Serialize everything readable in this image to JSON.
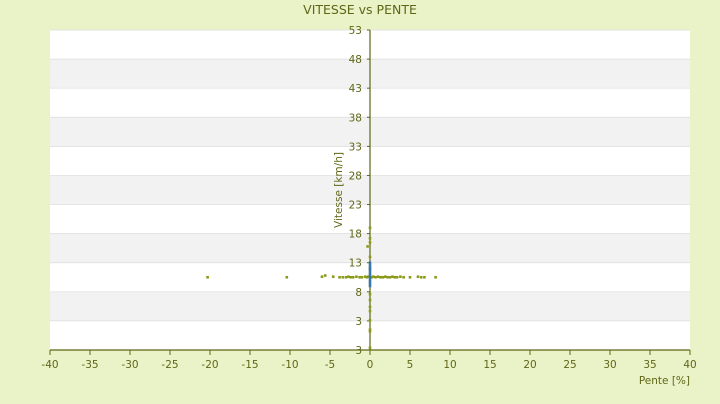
{
  "chart_data": {
    "type": "scatter",
    "title": "VITESSE vs PENTE",
    "xlabel": "Pente [%]",
    "ylabel": "Vitesse [km/h]",
    "xlim": [
      -40,
      40
    ],
    "ylim": [
      -2,
      53
    ],
    "x_ticks": [
      "-40",
      "-35",
      "-30",
      "-25",
      "-20",
      "-15",
      "-10",
      "-5",
      "0",
      "5",
      "10",
      "15",
      "20",
      "25",
      "30",
      "35",
      "40"
    ],
    "y_ticks": [
      "3",
      "3",
      "8",
      "13",
      "18",
      "23",
      "28",
      "33",
      "38",
      "43",
      "48",
      "53"
    ],
    "grid": true,
    "legend": "none",
    "colors": {
      "background": "#eaf2c8",
      "plot_band_light": "#ffffff",
      "plot_band_dark": "#f2f2f2",
      "text": "#5f6616",
      "axis": "#5f6616",
      "point": "#8a9a18",
      "point_highlight": "#3a76a8"
    },
    "series": [
      {
        "points": [
          [
            -20.3,
            10.5
          ],
          [
            -10.4,
            10.5
          ],
          [
            -6.0,
            10.6
          ],
          [
            -5.6,
            10.8
          ],
          [
            -4.6,
            10.6
          ],
          [
            -3.8,
            10.5
          ],
          [
            -3.4,
            10.5
          ],
          [
            -3.0,
            10.5
          ],
          [
            -2.7,
            10.6
          ],
          [
            -2.4,
            10.5
          ],
          [
            -2.1,
            10.5
          ],
          [
            -1.7,
            10.6
          ],
          [
            -1.3,
            10.5
          ],
          [
            -1.0,
            10.5
          ],
          [
            -0.6,
            10.6
          ],
          [
            -0.4,
            10.5
          ],
          [
            -0.2,
            10.6
          ],
          [
            0.2,
            10.5
          ],
          [
            0.4,
            10.6
          ],
          [
            0.7,
            10.5
          ],
          [
            1.0,
            10.6
          ],
          [
            1.3,
            10.5
          ],
          [
            1.6,
            10.5
          ],
          [
            1.9,
            10.6
          ],
          [
            2.2,
            10.5
          ],
          [
            2.5,
            10.5
          ],
          [
            2.8,
            10.6
          ],
          [
            3.1,
            10.5
          ],
          [
            3.4,
            10.5
          ],
          [
            3.8,
            10.6
          ],
          [
            4.2,
            10.5
          ],
          [
            5.0,
            10.5
          ],
          [
            6.0,
            10.6
          ],
          [
            6.4,
            10.5
          ],
          [
            6.8,
            10.5
          ],
          [
            8.2,
            10.5
          ],
          [
            -0.3,
            15.8
          ],
          [
            0.0,
            17.2
          ],
          [
            0.0,
            16.5
          ],
          [
            0.0,
            19.0
          ],
          [
            0.0,
            14.0
          ],
          [
            0.0,
            12.0
          ],
          [
            0.0,
            7.6
          ],
          [
            0.0,
            6.6
          ],
          [
            0.0,
            5.4
          ],
          [
            0.0,
            4.7
          ],
          [
            0.0,
            3.1
          ],
          [
            0.0,
            1.5
          ],
          [
            0.0,
            1.2
          ],
          [
            0.0,
            -1.6
          ]
        ]
      },
      {
        "points": [
          [
            0.0,
            9.0
          ],
          [
            0.0,
            9.4
          ],
          [
            0.0,
            9.8
          ],
          [
            0.0,
            10.2
          ],
          [
            0.0,
            10.6
          ],
          [
            0.0,
            11.0
          ],
          [
            0.0,
            11.4
          ],
          [
            0.0,
            11.8
          ],
          [
            0.0,
            12.2
          ],
          [
            0.0,
            12.6
          ],
          [
            0.0,
            13.0
          ]
        ]
      }
    ]
  }
}
